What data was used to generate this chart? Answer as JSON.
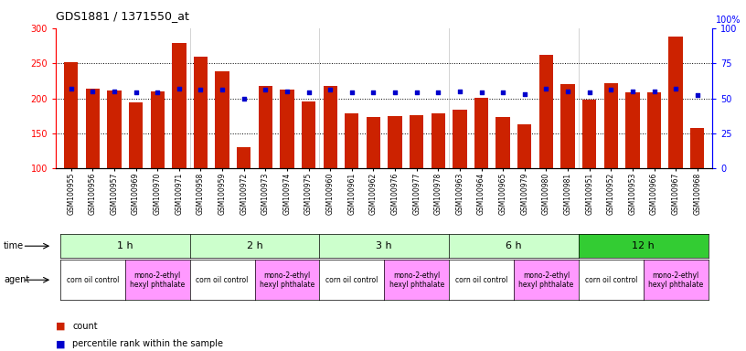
{
  "title": "GDS1881 / 1371550_at",
  "samples": [
    "GSM100955",
    "GSM100956",
    "GSM100957",
    "GSM100969",
    "GSM100970",
    "GSM100971",
    "GSM100958",
    "GSM100959",
    "GSM100972",
    "GSM100973",
    "GSM100974",
    "GSM100975",
    "GSM100960",
    "GSM100961",
    "GSM100962",
    "GSM100976",
    "GSM100977",
    "GSM100978",
    "GSM100963",
    "GSM100964",
    "GSM100965",
    "GSM100979",
    "GSM100980",
    "GSM100981",
    "GSM100951",
    "GSM100952",
    "GSM100953",
    "GSM100966",
    "GSM100967",
    "GSM100968"
  ],
  "counts": [
    251,
    214,
    211,
    194,
    210,
    279,
    259,
    238,
    131,
    217,
    213,
    196,
    218,
    179,
    173,
    174,
    176,
    179,
    184,
    201,
    173,
    163,
    262,
    220,
    198,
    222,
    209,
    208,
    288,
    158
  ],
  "percentiles": [
    57,
    55,
    55,
    54,
    54,
    57,
    56,
    56,
    50,
    56,
    55,
    54,
    56,
    54,
    54,
    54,
    54,
    54,
    55,
    54,
    54,
    53,
    57,
    55,
    54,
    56,
    55,
    55,
    57,
    52
  ],
  "ylim_left": [
    100,
    300
  ],
  "ylim_right": [
    0,
    100
  ],
  "yticks_left": [
    100,
    150,
    200,
    250,
    300
  ],
  "yticks_right": [
    0,
    25,
    50,
    75,
    100
  ],
  "bar_color": "#CC2200",
  "dot_color": "#0000CC",
  "bg_color": "#FFFFFF",
  "time_groups": [
    {
      "label": "1 h",
      "start": 0,
      "end": 6,
      "color": "#CCFFCC"
    },
    {
      "label": "2 h",
      "start": 6,
      "end": 12,
      "color": "#CCFFCC"
    },
    {
      "label": "3 h",
      "start": 12,
      "end": 18,
      "color": "#CCFFCC"
    },
    {
      "label": "6 h",
      "start": 18,
      "end": 24,
      "color": "#CCFFCC"
    },
    {
      "label": "12 h",
      "start": 24,
      "end": 30,
      "color": "#33CC33"
    }
  ],
  "agent_groups": [
    {
      "label": "corn oil control",
      "start": 0,
      "end": 3,
      "color": "#FFFFFF"
    },
    {
      "label": "mono-2-ethyl\nhexyl phthalate",
      "start": 3,
      "end": 6,
      "color": "#FF99FF"
    },
    {
      "label": "corn oil control",
      "start": 6,
      "end": 9,
      "color": "#FFFFFF"
    },
    {
      "label": "mono-2-ethyl\nhexyl phthalate",
      "start": 9,
      "end": 12,
      "color": "#FF99FF"
    },
    {
      "label": "corn oil control",
      "start": 12,
      "end": 15,
      "color": "#FFFFFF"
    },
    {
      "label": "mono-2-ethyl\nhexyl phthalate",
      "start": 15,
      "end": 18,
      "color": "#FF99FF"
    },
    {
      "label": "corn oil control",
      "start": 18,
      "end": 21,
      "color": "#FFFFFF"
    },
    {
      "label": "mono-2-ethyl\nhexyl phthalate",
      "start": 21,
      "end": 24,
      "color": "#FF99FF"
    },
    {
      "label": "corn oil control",
      "start": 24,
      "end": 27,
      "color": "#FFFFFF"
    },
    {
      "label": "mono-2-ethyl\nhexyl phthalate",
      "start": 27,
      "end": 30,
      "color": "#FF99FF"
    }
  ]
}
